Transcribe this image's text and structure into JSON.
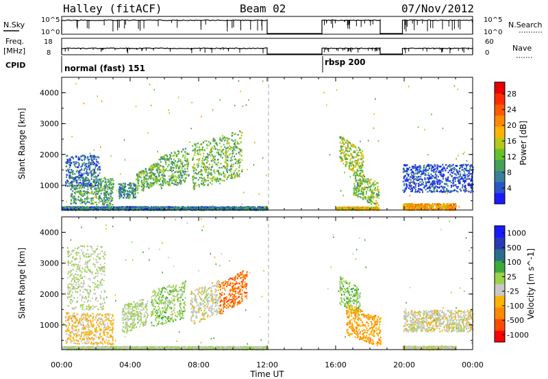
{
  "header": {
    "title": "Halley (fitACF)",
    "beam": "Beam 02",
    "date": "07/Nov/2012"
  },
  "info_panels": {
    "nsky_label": "N.Sky",
    "nsky_ticks": [
      "10^5",
      "10^0"
    ],
    "nsearch_label": "N.Search",
    "nsearch_ticks": [
      "10^5",
      "10^0"
    ],
    "freq_label_1": "Freq.",
    "freq_label_2": "[MHz]",
    "freq_ticks": [
      "18",
      "8"
    ],
    "nave_label": "Nave",
    "nave_ticks": [
      "60",
      "0"
    ],
    "cpid_label": "CPID",
    "cpid_segments": [
      {
        "label": "normal (fast) 151",
        "start_hour": 0,
        "end_hour": 12
      },
      {
        "label": "rbsp 200",
        "start_hour": 15.2,
        "end_hour": 24
      }
    ],
    "data_gaps": [
      [
        12,
        15.2
      ],
      [
        18.6,
        19.9
      ]
    ]
  },
  "x_axis": {
    "label": "Time UT",
    "ticks": [
      "00:00",
      "04:00",
      "08:00",
      "12:00",
      "16:00",
      "20:00",
      "00:00"
    ],
    "range_hours": [
      0,
      24
    ]
  },
  "chart_data": [
    {
      "type": "heatmap",
      "name": "power-panel",
      "xlabel": "Time UT",
      "ylabel": "Slant Range [km]",
      "y_ticks": [
        "1000",
        "2000",
        "3000",
        "4000"
      ],
      "ylim": [
        200,
        4500
      ],
      "xlim_hours": [
        0,
        24
      ],
      "colorbar": {
        "label": "Power [dB]",
        "ticks": [
          "4",
          "8",
          "12",
          "16",
          "20",
          "24",
          "28"
        ],
        "range": [
          0,
          31
        ],
        "colors": [
          "#1a1aff",
          "#2a55c8",
          "#3a7f9a",
          "#44a05a",
          "#66c22a",
          "#b5c81c",
          "#ffb400",
          "#ff8a00",
          "#ff5a00",
          "#ff2a00",
          "#e60000"
        ]
      },
      "clusters": [
        {
          "t0": 0.5,
          "t1": 3.0,
          "r0": 400,
          "r1": 1300,
          "value": 10,
          "tilt": -60
        },
        {
          "t0": 0.2,
          "t1": 2.2,
          "r0": 1000,
          "r1": 2000,
          "value": 6,
          "tilt": 0
        },
        {
          "t0": 4.3,
          "t1": 5.6,
          "r0": 900,
          "r1": 1600,
          "value": 12,
          "tilt": 400
        },
        {
          "t0": 5.6,
          "t1": 7.4,
          "r0": 1000,
          "r1": 2100,
          "value": 11,
          "tilt": 300
        },
        {
          "t0": 7.6,
          "t1": 10.5,
          "r0": 1100,
          "r1": 2600,
          "value": 12,
          "tilt": 450
        },
        {
          "t0": 3.3,
          "t1": 4.3,
          "r0": 600,
          "r1": 1100,
          "value": 8,
          "tilt": 0
        },
        {
          "t0": 16.2,
          "t1": 17.6,
          "r0": 1500,
          "r1": 2400,
          "value": 14,
          "tilt": -500
        },
        {
          "t0": 17.0,
          "t1": 18.5,
          "r0": 500,
          "r1": 1300,
          "value": 13,
          "tilt": -400
        },
        {
          "t0": 19.9,
          "t1": 24,
          "r0": 800,
          "r1": 1700,
          "value": 4,
          "tilt": 0
        },
        {
          "t0": 0.0,
          "t1": 12.0,
          "r0": 220,
          "r1": 330,
          "value": 7,
          "tilt": 0
        },
        {
          "t0": 16.0,
          "t1": 18.5,
          "r0": 220,
          "r1": 320,
          "value": 18,
          "tilt": 0
        },
        {
          "t0": 19.9,
          "t1": 23.0,
          "r0": 220,
          "r1": 430,
          "value": 20,
          "tilt": 0
        }
      ]
    },
    {
      "type": "heatmap",
      "name": "velocity-panel",
      "xlabel": "Time UT",
      "ylabel": "Slant Range [km]",
      "y_ticks": [
        "1000",
        "2000",
        "3000",
        "4000"
      ],
      "ylim": [
        200,
        4500
      ],
      "xlim_hours": [
        0,
        24
      ],
      "colorbar": {
        "label": "Velocity [m s^-1]",
        "ticks": [
          "1000",
          "500",
          "100",
          "25",
          "-25",
          "-100",
          "-500",
          "-1000"
        ],
        "range": [
          -1200,
          1200
        ],
        "colors": [
          "#ff0000",
          "#ff4a00",
          "#ff8a00",
          "#ffb400",
          "#c8c8c8",
          "#9ad24a",
          "#3caa3c",
          "#2a6f8a",
          "#2a3ab4",
          "#1a1aff"
        ]
      },
      "clusters": [
        {
          "t0": 0.2,
          "t1": 3.0,
          "r0": 400,
          "r1": 1400,
          "value": -300,
          "tilt": -60
        },
        {
          "t0": 0.3,
          "t1": 2.5,
          "r0": 1500,
          "r1": 3600,
          "value": 0,
          "tilt": 0
        },
        {
          "t0": 3.5,
          "t1": 5.0,
          "r0": 900,
          "r1": 1800,
          "value": 40,
          "tilt": 300
        },
        {
          "t0": 5.2,
          "t1": 7.2,
          "r0": 1100,
          "r1": 2300,
          "value": 120,
          "tilt": 300
        },
        {
          "t0": 7.5,
          "t1": 9.2,
          "r0": 1200,
          "r1": 2300,
          "value": -100,
          "tilt": 400
        },
        {
          "t0": 9.2,
          "t1": 10.8,
          "r0": 1600,
          "r1": 2600,
          "value": -700,
          "tilt": 500
        },
        {
          "t0": 16.2,
          "t1": 17.4,
          "r0": 1500,
          "r1": 2400,
          "value": 150,
          "tilt": -400
        },
        {
          "t0": 16.6,
          "t1": 18.6,
          "r0": 500,
          "r1": 1500,
          "value": -450,
          "tilt": -400
        },
        {
          "t0": 19.9,
          "t1": 24,
          "r0": 800,
          "r1": 1500,
          "value": -120,
          "tilt": 0
        },
        {
          "t0": 0.0,
          "t1": 12.0,
          "r0": 220,
          "r1": 320,
          "value": 0,
          "tilt": 0
        },
        {
          "t0": 19.9,
          "t1": 23.0,
          "r0": 220,
          "r1": 330,
          "value": -80,
          "tilt": 0
        }
      ]
    }
  ]
}
